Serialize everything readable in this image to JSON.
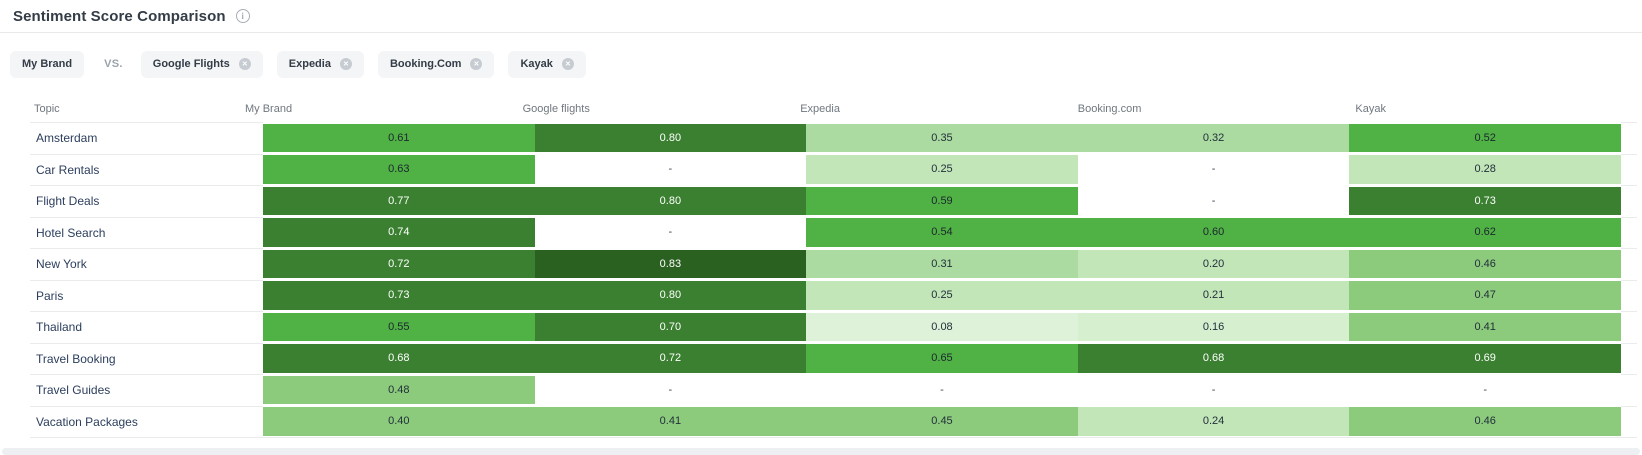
{
  "header": {
    "title": "Sentiment Score Comparison",
    "info_icon": "i"
  },
  "filters": {
    "my_brand_label": "My Brand",
    "vs_label": "VS.",
    "competitors": [
      "Google Flights",
      "Expedia",
      "Booking.Com",
      "Kayak"
    ],
    "remove_icon": "✕"
  },
  "chart_data": {
    "type": "heatmap",
    "title": "Sentiment Score Comparison",
    "row_header": "Topic",
    "columns": [
      "My Brand",
      "Google flights",
      "Expedia",
      "Booking.com",
      "Kayak"
    ],
    "rows": [
      {
        "topic": "Amsterdam",
        "values": [
          0.61,
          0.8,
          0.35,
          0.32,
          0.52
        ]
      },
      {
        "topic": "Car Rentals",
        "values": [
          0.63,
          null,
          0.25,
          null,
          0.28
        ]
      },
      {
        "topic": "Flight Deals",
        "values": [
          0.77,
          0.8,
          0.59,
          null,
          0.73
        ]
      },
      {
        "topic": "Hotel Search",
        "values": [
          0.74,
          null,
          0.54,
          0.6,
          0.62
        ]
      },
      {
        "topic": "New York",
        "values": [
          0.72,
          0.83,
          0.31,
          0.2,
          0.46
        ]
      },
      {
        "topic": "Paris",
        "values": [
          0.73,
          0.8,
          0.25,
          0.21,
          0.47
        ]
      },
      {
        "topic": "Thailand",
        "values": [
          0.55,
          0.7,
          0.08,
          0.16,
          0.41
        ]
      },
      {
        "topic": "Travel Booking",
        "values": [
          0.68,
          0.72,
          0.65,
          0.68,
          0.69
        ]
      },
      {
        "topic": "Travel Guides",
        "values": [
          0.48,
          null,
          null,
          null,
          null
        ]
      },
      {
        "topic": "Vacation Packages",
        "values": [
          0.4,
          0.41,
          0.45,
          0.24,
          0.46
        ]
      }
    ],
    "null_display": "-",
    "value_decimals": 2,
    "color_scale": [
      {
        "max": 0.1,
        "bg": "#ddf2d8",
        "text": "#22303c"
      },
      {
        "max": 0.2,
        "bg": "#d5efcf",
        "text": "#22303c"
      },
      {
        "max": 0.3,
        "bg": "#c2e6b8",
        "text": "#22303c"
      },
      {
        "max": 0.4,
        "bg": "#abdba0",
        "text": "#22303c"
      },
      {
        "max": 0.5,
        "bg": "#8cca7c",
        "text": "#22303c"
      },
      {
        "max": 0.66,
        "bg": "#50b244",
        "text": "#1c2630"
      },
      {
        "max": 0.82,
        "bg": "#3a8030",
        "text": "#ffffff"
      },
      {
        "max": 1.01,
        "bg": "#2b6120",
        "text": "#ffffff"
      }
    ]
  }
}
